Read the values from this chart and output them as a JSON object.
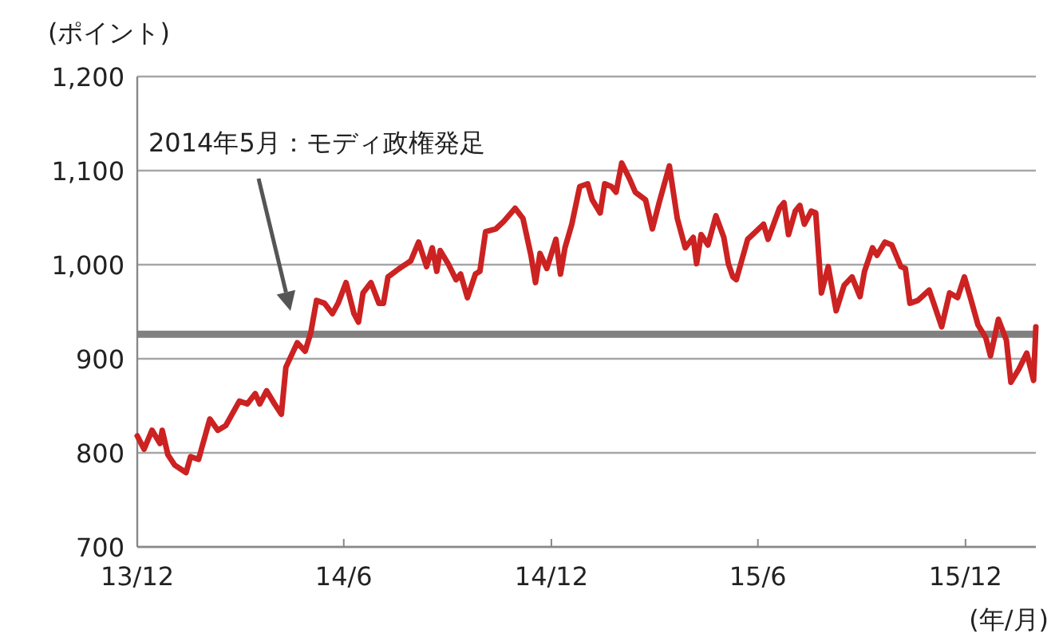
{
  "chart_data": {
    "type": "line",
    "ylabel": "(ポイント)",
    "xlabel": "(年/月)",
    "annotations": [
      "2014年5月：モディ政権発足"
    ],
    "x": [
      "2013-12-01",
      "2013-12-07",
      "2013-12-14",
      "2013-12-21",
      "2013-12-23",
      "2013-12-28",
      "2014-01-03",
      "2014-01-13",
      "2014-01-17",
      "2014-01-24",
      "2014-02-03",
      "2014-02-10",
      "2014-02-17",
      "2014-03-01",
      "2014-03-08",
      "2014-03-15",
      "2014-03-19",
      "2014-03-25",
      "2014-04-01",
      "2014-04-07",
      "2014-04-11",
      "2014-04-21",
      "2014-04-28",
      "2014-05-03",
      "2014-05-08",
      "2014-05-15",
      "2014-05-22",
      "2014-05-27",
      "2014-06-03",
      "2014-06-10",
      "2014-06-14",
      "2014-06-18",
      "2014-06-25",
      "2014-07-02",
      "2014-07-06",
      "2014-07-10",
      "2014-07-20",
      "2014-07-30",
      "2014-08-06",
      "2014-08-13",
      "2014-08-18",
      "2014-08-22",
      "2014-08-25",
      "2014-09-01",
      "2014-09-08",
      "2014-09-12",
      "2014-09-18",
      "2014-09-25",
      "2014-09-29",
      "2014-10-04",
      "2014-10-13",
      "2014-10-20",
      "2014-10-30",
      "2014-11-06",
      "2014-11-13",
      "2014-11-17",
      "2014-11-21",
      "2014-11-27",
      "2014-12-05",
      "2014-12-09",
      "2014-12-13",
      "2014-12-19",
      "2014-12-26",
      "2015-01-02",
      "2015-01-06",
      "2015-01-13",
      "2015-01-17",
      "2015-01-23",
      "2015-01-27",
      "2015-02-01",
      "2015-02-08",
      "2015-02-13",
      "2015-02-22",
      "2015-02-28",
      "2015-03-06",
      "2015-03-15",
      "2015-03-22",
      "2015-03-29",
      "2015-04-05",
      "2015-04-08",
      "2015-04-12",
      "2015-04-18",
      "2015-04-25",
      "2015-05-02",
      "2015-05-06",
      "2015-05-10",
      "2015-05-13",
      "2015-05-23",
      "2015-05-30",
      "2015-06-06",
      "2015-06-10",
      "2015-06-20",
      "2015-06-24",
      "2015-06-28",
      "2015-07-04",
      "2015-07-08",
      "2015-07-12",
      "2015-07-18",
      "2015-07-22",
      "2015-07-27",
      "2015-08-02",
      "2015-08-09",
      "2015-08-16",
      "2015-08-23",
      "2015-08-30",
      "2015-09-03",
      "2015-09-10",
      "2015-09-14",
      "2015-09-21",
      "2015-09-27",
      "2015-10-05",
      "2015-10-09",
      "2015-10-13",
      "2015-10-20",
      "2015-10-30",
      "2015-11-03",
      "2015-11-10",
      "2015-11-17",
      "2015-11-24",
      "2015-11-30",
      "2015-12-06",
      "2015-12-12",
      "2015-12-19",
      "2015-12-23",
      "2015-12-30",
      "2016-01-06",
      "2016-01-10",
      "2016-01-17",
      "2016-01-24",
      "2016-01-30",
      "2016-02-01"
    ],
    "series": [
      {
        "color": "#cc2222",
        "values": [
          818,
          804,
          824,
          810,
          824,
          798,
          787,
          779,
          796,
          793,
          836,
          824,
          829,
          855,
          852,
          863,
          852,
          866,
          852,
          841,
          891,
          917,
          908,
          928,
          962,
          959,
          948,
          959,
          981,
          948,
          939,
          970,
          981,
          959,
          959,
          987,
          996,
          1004,
          1024,
          998,
          1018,
          993,
          1015,
          1001,
          984,
          990,
          965,
          990,
          993,
          1035,
          1038,
          1046,
          1060,
          1049,
          1010,
          981,
          1012,
          996,
          1027,
          990,
          1018,
          1043,
          1083,
          1086,
          1069,
          1055,
          1086,
          1083,
          1077,
          1108,
          1091,
          1077,
          1069,
          1038,
          1066,
          1105,
          1049,
          1018,
          1029,
          1001,
          1032,
          1021,
          1052,
          1029,
          1001,
          987,
          984,
          1027,
          1035,
          1043,
          1027,
          1060,
          1066,
          1032,
          1057,
          1063,
          1043,
          1057,
          1055,
          970,
          998,
          951,
          978,
          987,
          966,
          993,
          1018,
          1010,
          1024,
          1021,
          998,
          996,
          959,
          962,
          973,
          959,
          934,
          970,
          965,
          987,
          962,
          936,
          922,
          903,
          942,
          920,
          875,
          889,
          906,
          877,
          934
        ]
      }
    ],
    "xlim": [
      "2013-12-01",
      "2016-02-01"
    ],
    "xticks": [
      {
        "value": "2013-12-01",
        "label": "13/12"
      },
      {
        "value": "2014-06-01",
        "label": "14/6"
      },
      {
        "value": "2014-12-01",
        "label": "14/12"
      },
      {
        "value": "2015-06-01",
        "label": "15/6"
      },
      {
        "value": "2015-12-01",
        "label": "15/12"
      }
    ],
    "ylim": [
      700,
      1200
    ],
    "yticks": [
      {
        "value": 700,
        "label": "700"
      },
      {
        "value": 800,
        "label": "800"
      },
      {
        "value": 900,
        "label": "900"
      },
      {
        "value": 1000,
        "label": "1,000"
      },
      {
        "value": 1100,
        "label": "1,100"
      },
      {
        "value": 1200,
        "label": "1,200"
      }
    ],
    "ref_lines": [
      {
        "axis": "y",
        "value": 926,
        "color": "#808080"
      }
    ],
    "grid": "y"
  }
}
